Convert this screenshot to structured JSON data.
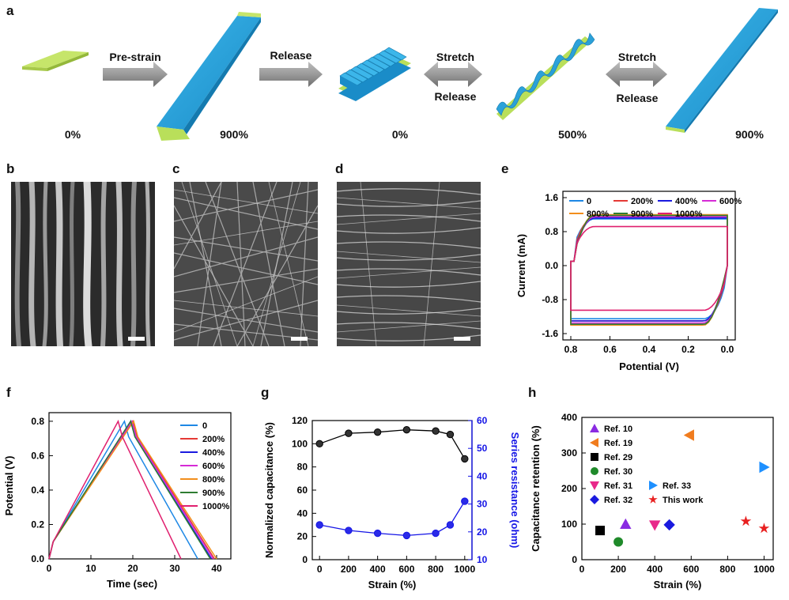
{
  "panel_letters": [
    "a",
    "b",
    "c",
    "d",
    "e",
    "f",
    "g",
    "h"
  ],
  "schematic": {
    "strain_labels": [
      "0%",
      "900%",
      "0%",
      "500%",
      "900%"
    ],
    "arrow_labels": {
      "prestrain": "Pre-strain",
      "release1": "Release",
      "stretch1": "Stretch",
      "release2": "Release",
      "stretch2": "Stretch",
      "release3": "Release"
    },
    "colors": {
      "substrate": "#b9df5a",
      "film": "#1da0d8",
      "arrow": "#8c8c8c"
    }
  },
  "chart_data": [
    {
      "panel": "e",
      "type": "line",
      "title": "",
      "xlabel": "Potential (V)",
      "ylabel": "Current (mA)",
      "xlim": [
        0.8,
        0.0
      ],
      "ylim": [
        -1.6,
        1.6
      ],
      "xticks": [
        "0.8",
        "0.6",
        "0.4",
        "0.2",
        "0.0"
      ],
      "yticks": [
        "1.6",
        "0.8",
        "0.0",
        "-0.8",
        "-1.6"
      ],
      "legend_position": "top",
      "series": [
        {
          "name": "0",
          "color": "#1e88e5"
        },
        {
          "name": "200%",
          "color": "#e53935"
        },
        {
          "name": "400%",
          "color": "#1a1adf"
        },
        {
          "name": "600%",
          "color": "#d62bd6"
        },
        {
          "name": "800%",
          "color": "#f28e1c"
        },
        {
          "name": "900%",
          "color": "#2e7d32"
        },
        {
          "name": "1000%",
          "color": "#e0206f"
        }
      ]
    },
    {
      "panel": "f",
      "type": "line",
      "title": "",
      "xlabel": "Time (sec)",
      "ylabel": "Potential (V)",
      "xlim": [
        0,
        40
      ],
      "ylim": [
        0.0,
        0.85
      ],
      "xticks": [
        "0",
        "10",
        "20",
        "30",
        "40"
      ],
      "yticks": [
        "0.0",
        "0.2",
        "0.4",
        "0.6",
        "0.8"
      ],
      "legend_position": "right",
      "series": [
        {
          "name": "0",
          "color": "#1e88e5",
          "peak": 18,
          "end": 35.5
        },
        {
          "name": "200%",
          "color": "#e53935",
          "peak": 20,
          "end": 39.5
        },
        {
          "name": "400%",
          "color": "#1a1adf",
          "peak": 19.5,
          "end": 38.8
        },
        {
          "name": "600%",
          "color": "#d62bd6",
          "peak": 19.8,
          "end": 39.2
        },
        {
          "name": "800%",
          "color": "#f28e1c",
          "peak": 20.2,
          "end": 40
        },
        {
          "name": "900%",
          "color": "#2e7d32",
          "peak": 19.5,
          "end": 38.5
        },
        {
          "name": "1000%",
          "color": "#e0206f",
          "peak": 16.5,
          "end": 31.5
        }
      ]
    },
    {
      "panel": "g",
      "type": "line",
      "title": "",
      "xlabel": "Strain (%)",
      "ylabel": "Normalized capacitance (%)",
      "ylabel_right": "Series resistance (ohm)",
      "xlim": [
        -50,
        1050
      ],
      "ylim": [
        0,
        120
      ],
      "ylim_right": [
        10,
        60
      ],
      "xticks": [
        "0",
        "200",
        "400",
        "600",
        "800",
        "1000"
      ],
      "yticks": [
        "0",
        "20",
        "40",
        "60",
        "80",
        "100",
        "120"
      ],
      "yticks_right": [
        "10",
        "20",
        "30",
        "40",
        "50",
        "60"
      ],
      "x": [
        0,
        200,
        400,
        600,
        800,
        900,
        1000
      ],
      "series": [
        {
          "name": "Normalized capacitance",
          "axis": "left",
          "color": "#000000",
          "values": [
            100,
            109,
            110,
            112,
            111,
            108,
            87
          ]
        },
        {
          "name": "Series resistance",
          "axis": "right",
          "color": "#1515e6",
          "values": [
            22.5,
            20.5,
            19.5,
            18.7,
            19.5,
            22.5,
            31
          ]
        }
      ]
    },
    {
      "panel": "h",
      "type": "scatter",
      "title": "",
      "xlabel": "Strain (%)",
      "ylabel": "Capacitance retention (%)",
      "xlim": [
        0,
        1050
      ],
      "ylim": [
        0,
        400
      ],
      "xticks": [
        "0",
        "200",
        "400",
        "600",
        "800",
        "1000"
      ],
      "yticks": [
        "0",
        "100",
        "200",
        "300",
        "400"
      ],
      "legend_position": "top-left",
      "series": [
        {
          "name": "Ref. 10",
          "marker": "triangle-up",
          "color": "#8a2be2",
          "x": [
            240
          ],
          "y": [
            100
          ]
        },
        {
          "name": "Ref. 19",
          "marker": "triangle-left",
          "color": "#f07c1e",
          "x": [
            590
          ],
          "y": [
            350
          ]
        },
        {
          "name": "Ref. 29",
          "marker": "square",
          "color": "#000000",
          "x": [
            100
          ],
          "y": [
            82
          ]
        },
        {
          "name": "Ref. 30",
          "marker": "circle",
          "color": "#1f8a2a",
          "x": [
            200
          ],
          "y": [
            50
          ]
        },
        {
          "name": "Ref. 31",
          "marker": "triangle-down",
          "color": "#e8288a",
          "x": [
            400
          ],
          "y": [
            97
          ]
        },
        {
          "name": "Ref. 32",
          "marker": "diamond",
          "color": "#1a1adf",
          "x": [
            480
          ],
          "y": [
            98
          ]
        },
        {
          "name": "Ref. 33",
          "marker": "triangle-right",
          "color": "#1e90ff",
          "x": [
            1000
          ],
          "y": [
            260
          ]
        },
        {
          "name": "This work",
          "marker": "star",
          "color": "#e82020",
          "x": [
            900,
            1000
          ],
          "y": [
            108,
            88
          ]
        }
      ]
    }
  ]
}
